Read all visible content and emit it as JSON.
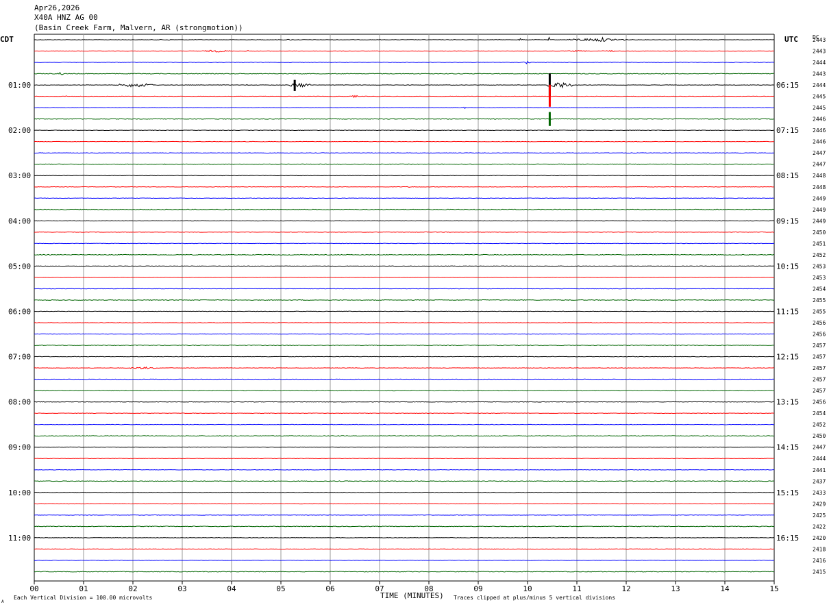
{
  "header": {
    "date": "Apr26,2026",
    "station": "X40A HNZ AG 00",
    "location": "(Basin Creek Farm, Malvern, AR (strongmotion))"
  },
  "axes": {
    "left_label": "CDT",
    "right_label": "UTC",
    "dc_label": "DC",
    "x_title": "TIME (MINUTES)",
    "footer_left": "Each Vertical Division =  100.00 microvolts",
    "footer_right": "Traces clipped at plus/minus 5 vertical divisions",
    "footer_mark": "A"
  },
  "chart_data": {
    "type": "line",
    "description_units": "helicorder: 48 traces of 15 minutes each",
    "x_ticks": [
      "00",
      "01",
      "02",
      "03",
      "04",
      "05",
      "06",
      "07",
      "08",
      "09",
      "10",
      "11",
      "12",
      "13",
      "14",
      "15"
    ],
    "xlim": [
      0,
      15
    ],
    "trace_colors": [
      "#000000",
      "#ff0000",
      "#0000ff",
      "#006400"
    ],
    "left_times": [
      "01:00",
      "02:00",
      "03:00",
      "04:00",
      "05:00",
      "06:00",
      "07:00",
      "08:00",
      "09:00",
      "10:00",
      "11:00"
    ],
    "right_times": [
      "06:15",
      "07:15",
      "08:15",
      "09:15",
      "10:15",
      "11:15",
      "12:15",
      "13:15",
      "14:15",
      "15:15",
      "16:15"
    ],
    "dc_values": [
      "2443",
      "2443",
      "2444",
      "2443",
      "2444",
      "2445",
      "2445",
      "2446",
      "2446",
      "2446",
      "2447",
      "2447",
      "2448",
      "2448",
      "2449",
      "2449",
      "2449",
      "2450",
      "2451",
      "2452",
      "2453",
      "2453",
      "2454",
      "2455",
      "2455",
      "2456",
      "2456",
      "2457",
      "2457",
      "2457",
      "2457",
      "2457",
      "2456",
      "2454",
      "2452",
      "2450",
      "2447",
      "2444",
      "2441",
      "2437",
      "2433",
      "2429",
      "2425",
      "2422",
      "2420",
      "2418",
      "2416",
      "2415"
    ],
    "events": [
      {
        "row": 0,
        "start": 2.5,
        "end": 2.9,
        "amp": 0.3
      },
      {
        "row": 0,
        "start": 5.0,
        "end": 5.3,
        "amp": 0.3
      },
      {
        "row": 0,
        "start": 8.3,
        "end": 8.9,
        "amp": 0.2
      },
      {
        "row": 0,
        "start": 9.8,
        "end": 9.9,
        "amp": 0.8
      },
      {
        "row": 0,
        "start": 10.4,
        "end": 10.45,
        "amp": 2.0
      },
      {
        "row": 0,
        "start": 10.8,
        "end": 12.0,
        "amp": 0.9
      },
      {
        "row": 0,
        "start": 11.4,
        "end": 11.6,
        "amp": 1.4
      },
      {
        "row": 1,
        "start": 3.4,
        "end": 4.0,
        "amp": 0.6
      },
      {
        "row": 1,
        "start": 4.3,
        "end": 4.35,
        "amp": 0.7
      },
      {
        "row": 1,
        "start": 10.8,
        "end": 11.2,
        "amp": 0.4
      },
      {
        "row": 1,
        "start": 11.5,
        "end": 11.8,
        "amp": 0.5
      },
      {
        "row": 2,
        "start": 9.9,
        "end": 10.05,
        "amp": 0.8
      },
      {
        "row": 3,
        "start": 0.45,
        "end": 0.6,
        "amp": 0.9
      },
      {
        "row": 3,
        "start": 1.0,
        "end": 1.1,
        "amp": 0.3
      },
      {
        "row": 3,
        "start": 7.6,
        "end": 7.9,
        "amp": 0.3
      },
      {
        "row": 3,
        "start": 12.6,
        "end": 12.9,
        "amp": 0.3
      },
      {
        "row": 4,
        "start": 1.7,
        "end": 2.4,
        "amp": 1.2
      },
      {
        "row": 4,
        "start": 4.3,
        "end": 4.35,
        "amp": 0.5
      },
      {
        "row": 4,
        "start": 5.15,
        "end": 5.6,
        "amp": 1.3
      },
      {
        "row": 4,
        "start": 10.4,
        "end": 10.9,
        "amp": 1.8
      },
      {
        "row": 5,
        "start": 0.6,
        "end": 0.7,
        "amp": 0.3
      },
      {
        "row": 5,
        "start": 6.45,
        "end": 6.55,
        "amp": 0.9
      },
      {
        "row": 6,
        "start": 8.7,
        "end": 8.75,
        "amp": 0.6
      },
      {
        "row": 13,
        "start": 7.5,
        "end": 7.8,
        "amp": 0.3
      },
      {
        "row": 29,
        "start": 1.9,
        "end": 2.5,
        "amp": 0.6
      }
    ],
    "spikes": [
      {
        "row": 4,
        "x": 10.45,
        "up": 5.0,
        "down": 5.0
      },
      {
        "row": 5,
        "x": 10.45,
        "up": 5.0,
        "down": 4.5
      },
      {
        "row": 7,
        "x": 10.45,
        "up": 3.0,
        "down": 3.0
      },
      {
        "row": 4,
        "x": 5.28,
        "up": 2.2,
        "down": 2.6
      }
    ]
  }
}
